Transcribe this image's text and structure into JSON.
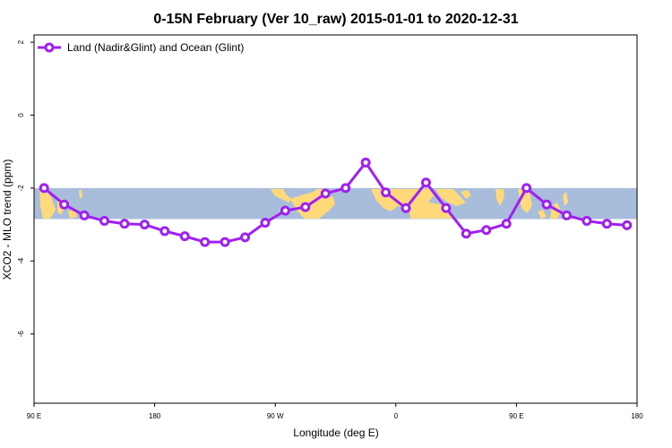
{
  "chart_data": {
    "type": "line",
    "title": "0-15N February (Ver 10_raw)   2015-01-01 to 2020-12-31",
    "xlabel": "Longitude (deg E)",
    "ylabel": "XCO2 - MLO trend (ppm)",
    "x_ticks": [
      {
        "value": 90,
        "label": "90 E"
      },
      {
        "value": 180,
        "label": "180"
      },
      {
        "value": 270,
        "label": "90 W"
      },
      {
        "value": 360,
        "label": "0"
      },
      {
        "value": 450,
        "label": "90 E"
      },
      {
        "value": 540,
        "label": "180"
      }
    ],
    "y_ticks": [
      {
        "value": 2,
        "label": "2"
      },
      {
        "value": 0,
        "label": "0"
      },
      {
        "value": -2,
        "label": "-2"
      },
      {
        "value": -4,
        "label": "-4"
      },
      {
        "value": -6,
        "label": "-6"
      }
    ],
    "xlim": [
      90,
      540
    ],
    "ylim": [
      -7.9,
      2.2
    ],
    "grid": false,
    "legend_position": "top-left",
    "colors": {
      "series": "#a020f0",
      "ocean": "#a8bddb",
      "land": "#ffd97a"
    },
    "background_map_band": {
      "lat_range": "0-15N",
      "y_range": [
        -2.85,
        -2.0
      ]
    },
    "series": [
      {
        "name": "Land (Nadir&Glint) and Ocean (Glint)",
        "x": [
          97.5,
          112.5,
          127.5,
          142.5,
          157.5,
          172.5,
          187.5,
          202.5,
          217.5,
          232.5,
          247.5,
          262.5,
          277.5,
          292.5,
          307.5,
          322.5,
          337.5,
          352.5,
          367.5,
          382.5,
          397.5,
          412.5,
          427.5,
          442.5,
          457.5,
          472.5,
          487.5,
          502.5,
          517.5,
          532.5
        ],
        "values": [
          -2.0,
          -2.45,
          -2.75,
          -2.9,
          -2.98,
          -3.0,
          -3.18,
          -3.32,
          -3.48,
          -3.48,
          -3.35,
          -2.95,
          -2.62,
          -2.52,
          -2.15,
          -2.0,
          -1.3,
          -2.12,
          -2.55,
          -1.85,
          -2.55,
          -3.25,
          -3.15,
          -2.98,
          -2.0,
          -2.45,
          -2.75,
          -2.9,
          -2.98,
          -3.02
        ]
      }
    ]
  }
}
